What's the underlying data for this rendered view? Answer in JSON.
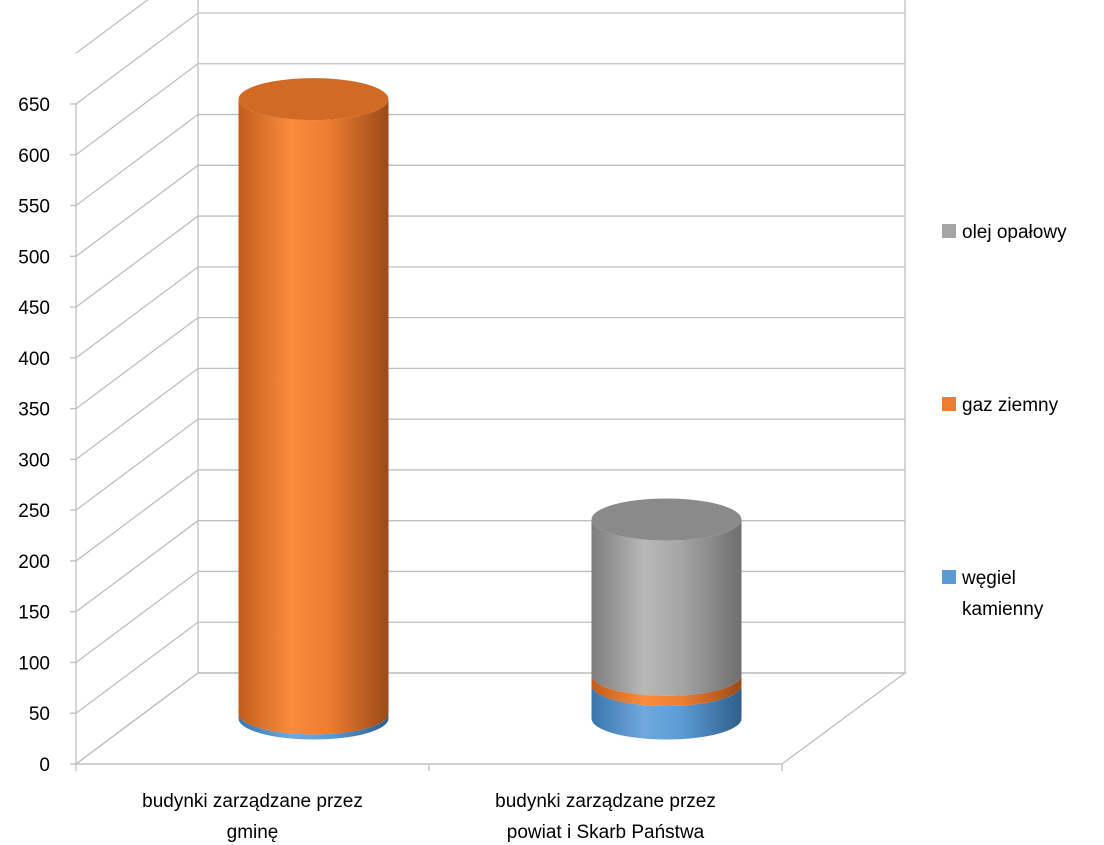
{
  "chart_data": {
    "type": "bar",
    "stacked": true,
    "style": "3d-cylinder",
    "categories": [
      [
        "budynki zarządzane przez",
        "gminę"
      ],
      [
        "budynki zarządzane przez",
        "powiat i Skarb Państwa"
      ]
    ],
    "series": [
      {
        "name": "węgiel kamienny",
        "values": [
          5,
          33
        ],
        "color": "#5B9BD5"
      },
      {
        "name": "gaz ziemny",
        "values": [
          605,
          10
        ],
        "color": "#ED7D31"
      },
      {
        "name": "olej opałowy",
        "values": [
          0,
          153
        ],
        "color": "#A5A5A5"
      }
    ],
    "legend_lines": [
      [
        "olej opałowy"
      ],
      [
        "gaz ziemny"
      ],
      [
        "węgiel",
        "kamienny"
      ]
    ],
    "legend_order": [
      2,
      1,
      0
    ],
    "ylim": [
      0,
      650
    ],
    "ytick_step": 50,
    "grid": true,
    "legend_position": "right",
    "xlabel": "",
    "ylabel": "",
    "title": ""
  }
}
